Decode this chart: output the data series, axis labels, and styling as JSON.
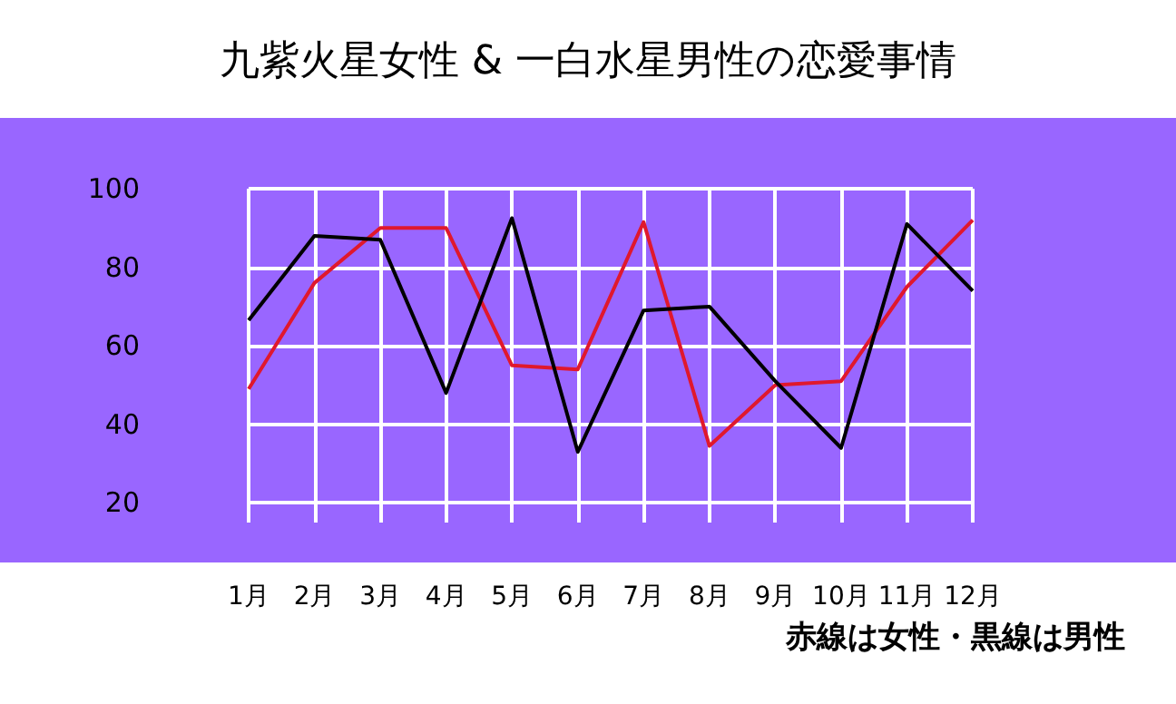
{
  "chart_data": {
    "type": "line",
    "title": "九紫火星女性 & 一白水星男性の恋愛事情",
    "categories": [
      "1月",
      "2月",
      "3月",
      "4月",
      "5月",
      "6月",
      "7月",
      "8月",
      "9月",
      "10月",
      "11月",
      "12月"
    ],
    "series": [
      {
        "color": "#e0182d",
        "values": [
          49,
          76,
          90,
          90,
          55,
          54,
          91.5,
          34.5,
          50,
          51,
          75,
          92
        ]
      },
      {
        "color": "#000000",
        "values": [
          66.5,
          88,
          87,
          48,
          92.5,
          33,
          69,
          70,
          51,
          34,
          91,
          74
        ]
      }
    ],
    "ylim": [
      15,
      100
    ],
    "yticks": [
      20,
      40,
      60,
      80,
      100
    ],
    "grid": true,
    "line_style": "solid",
    "annotations": [
      "赤線は女性・黒線は男性"
    ]
  }
}
